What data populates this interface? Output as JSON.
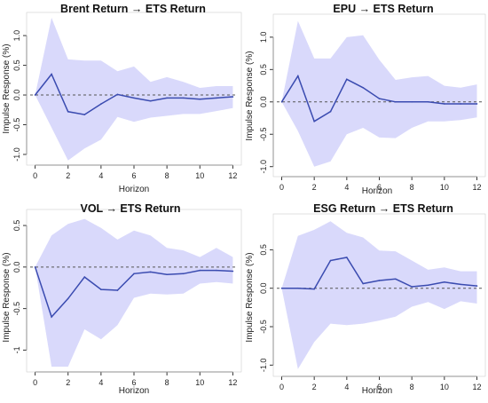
{
  "colors": {
    "band": "#d9d9fb",
    "line": "#3a4bb0",
    "zero": "#555555",
    "axis": "#333333"
  },
  "panels": [
    {
      "title": "Brent Return → ETS Return",
      "xlabel": "Horizon",
      "ylabel": "Impulse Response (%)"
    },
    {
      "title": "EPU → ETS Return",
      "xlabel": "Horizon",
      "ylabel": "Impulse Response (%)"
    },
    {
      "title": "VOL → ETS Return",
      "xlabel": "Horizon",
      "ylabel": "Impulse Response (%)"
    },
    {
      "title": "ESG Return → ETS Return",
      "xlabel": "Horizon",
      "ylabel": "Impulse Response (%)"
    }
  ],
  "chart_data": [
    {
      "type": "line",
      "title": "Brent Return → ETS Return",
      "xlabel": "Horizon",
      "ylabel": "Impulse Response (%)",
      "x": [
        0,
        1,
        2,
        3,
        4,
        5,
        6,
        7,
        8,
        9,
        10,
        11,
        12
      ],
      "series": [
        {
          "values": [
            0.0,
            0.35,
            -0.28,
            -0.33,
            -0.15,
            0.01,
            -0.05,
            -0.1,
            -0.05,
            -0.05,
            -0.07,
            -0.05,
            -0.03
          ]
        },
        {
          "role": "upper",
          "values": [
            0.0,
            1.3,
            0.6,
            0.58,
            0.58,
            0.4,
            0.48,
            0.22,
            0.3,
            0.22,
            0.12,
            0.15,
            0.15
          ]
        },
        {
          "role": "lower",
          "values": [
            0.0,
            -0.55,
            -1.1,
            -0.9,
            -0.75,
            -0.37,
            -0.45,
            -0.38,
            -0.35,
            -0.32,
            -0.32,
            -0.27,
            -0.22
          ]
        }
      ],
      "xticks": [
        0,
        2,
        4,
        6,
        8,
        10,
        12
      ],
      "yticks": [
        -1.0,
        -0.5,
        0.0,
        0.5,
        1.0
      ],
      "ytick_labels": [
        "-1.0",
        "-0.5",
        "0.0",
        "0.5",
        "1.0"
      ],
      "xlim": [
        -0.3,
        12.3
      ],
      "ylim": [
        -1.12,
        1.33
      ],
      "grid": false
    },
    {
      "type": "line",
      "title": "EPU → ETS Return",
      "xlabel": "Horizon",
      "ylabel": "Impulse Response (%)",
      "x": [
        0,
        1,
        2,
        3,
        4,
        5,
        6,
        7,
        8,
        9,
        10,
        11,
        12
      ],
      "series": [
        {
          "values": [
            0.0,
            0.4,
            -0.3,
            -0.15,
            0.35,
            0.22,
            0.05,
            0.0,
            0.0,
            0.0,
            -0.03,
            -0.03,
            -0.03
          ]
        },
        {
          "role": "upper",
          "values": [
            0.0,
            1.25,
            0.67,
            0.67,
            1.0,
            1.03,
            0.65,
            0.34,
            0.38,
            0.4,
            0.25,
            0.22,
            0.27
          ]
        },
        {
          "role": "lower",
          "values": [
            0.0,
            -0.45,
            -1.0,
            -0.92,
            -0.5,
            -0.4,
            -0.55,
            -0.56,
            -0.4,
            -0.3,
            -0.3,
            -0.28,
            -0.24
          ]
        }
      ],
      "xticks": [
        0,
        2,
        4,
        6,
        8,
        10,
        12
      ],
      "yticks": [
        -1.0,
        -0.5,
        0.0,
        0.5,
        1.0
      ],
      "ytick_labels": [
        "-1.0",
        "-0.5",
        "0.0",
        "0.5",
        "1.0"
      ],
      "xlim": [
        -0.3,
        12.3
      ],
      "ylim": [
        -1.1,
        1.3
      ],
      "grid": false
    },
    {
      "type": "line",
      "title": "VOL → ETS Return",
      "xlabel": "Horizon",
      "ylabel": "Impulse Response (%)",
      "x": [
        0,
        1,
        2,
        3,
        4,
        5,
        6,
        7,
        8,
        9,
        10,
        11,
        12
      ],
      "series": [
        {
          "values": [
            0.0,
            -0.6,
            -0.38,
            -0.12,
            -0.27,
            -0.28,
            -0.08,
            -0.06,
            -0.09,
            -0.08,
            -0.04,
            -0.04,
            -0.05
          ]
        },
        {
          "role": "upper",
          "values": [
            0.0,
            0.38,
            0.52,
            0.58,
            0.47,
            0.33,
            0.44,
            0.38,
            0.23,
            0.2,
            0.12,
            0.23,
            0.12
          ]
        },
        {
          "role": "lower",
          "values": [
            0.0,
            -1.2,
            -1.2,
            -0.75,
            -0.87,
            -0.7,
            -0.37,
            -0.32,
            -0.33,
            -0.32,
            -0.2,
            -0.18,
            -0.2
          ]
        }
      ],
      "xticks": [
        0,
        2,
        4,
        6,
        8,
        10,
        12
      ],
      "yticks": [
        -1.0,
        -0.5,
        0.0,
        0.5
      ],
      "ytick_labels": [
        "-1",
        "-0.5",
        "0.0",
        "0.5"
      ],
      "xlim": [
        -0.3,
        12.3
      ],
      "ylim": [
        -1.22,
        0.65
      ],
      "grid": false
    },
    {
      "type": "line",
      "title": "ESG Return → ETS Return",
      "xlabel": "Horizon",
      "ylabel": "Impulse Response (%)",
      "x": [
        0,
        1,
        2,
        3,
        4,
        5,
        6,
        7,
        8,
        9,
        10,
        11,
        12
      ],
      "series": [
        {
          "values": [
            0.0,
            0.0,
            -0.01,
            0.36,
            0.4,
            0.06,
            0.1,
            0.12,
            0.02,
            0.04,
            0.08,
            0.05,
            0.03
          ]
        },
        {
          "role": "upper",
          "values": [
            0.0,
            0.68,
            0.76,
            0.87,
            0.72,
            0.66,
            0.49,
            0.48,
            0.36,
            0.24,
            0.27,
            0.22,
            0.22
          ]
        },
        {
          "role": "lower",
          "values": [
            0.0,
            -1.05,
            -0.7,
            -0.46,
            -0.48,
            -0.46,
            -0.42,
            -0.37,
            -0.24,
            -0.18,
            -0.27,
            -0.17,
            -0.2
          ]
        }
      ],
      "xticks": [
        0,
        2,
        4,
        6,
        8,
        10,
        12
      ],
      "yticks": [
        -1.0,
        -0.5,
        0.0,
        0.5
      ],
      "ytick_labels": [
        "-1.0",
        "-0.5",
        "0.0",
        "0.5"
      ],
      "xlim": [
        -0.3,
        12.3
      ],
      "ylim": [
        -1.1,
        0.92
      ],
      "grid": false
    }
  ]
}
